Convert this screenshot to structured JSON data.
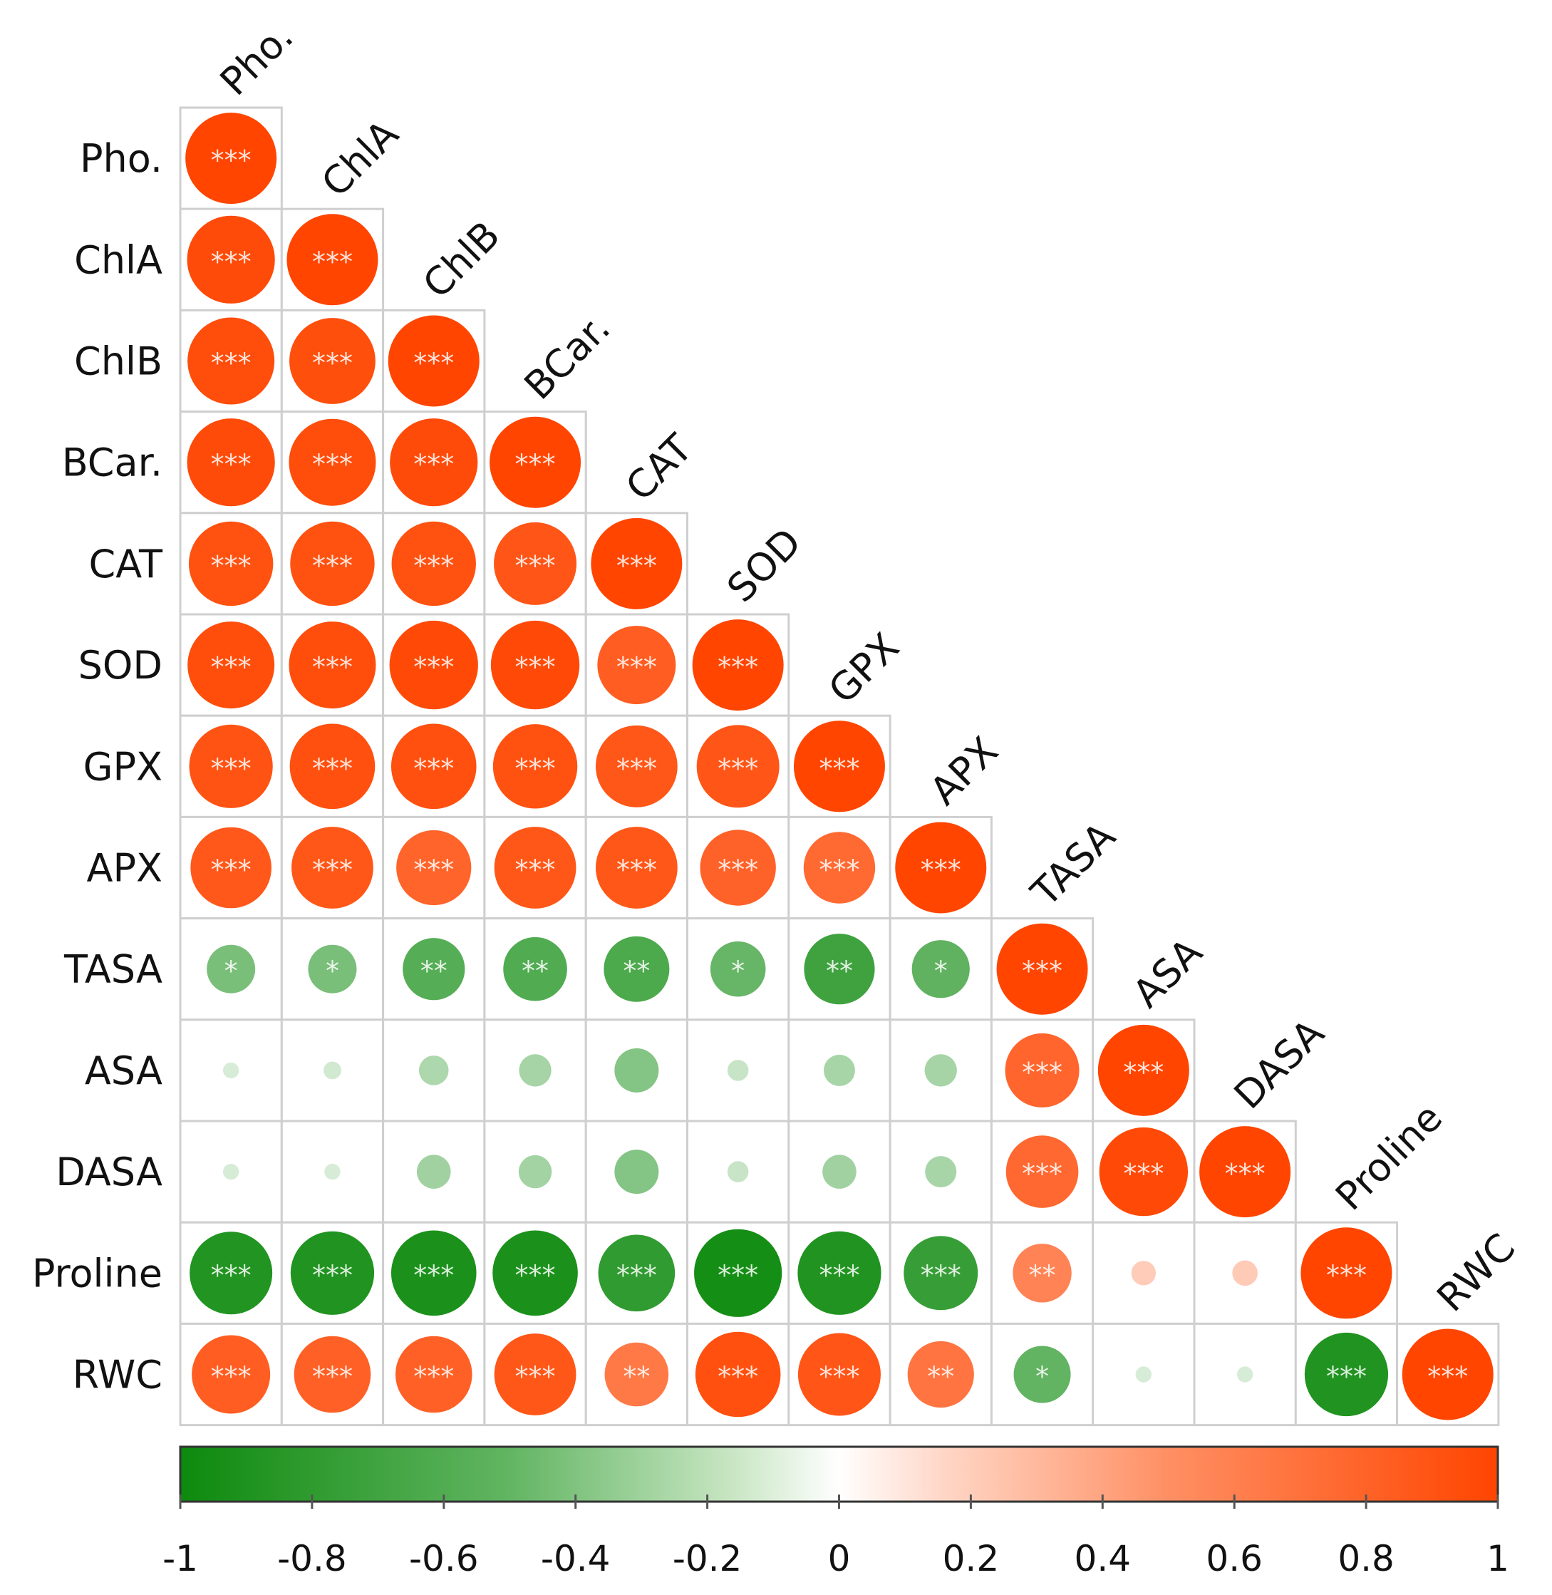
{
  "chart_data": {
    "type": "heatmap",
    "variables": [
      "Pho.",
      "ChlA",
      "ChlB",
      "BCar.",
      "CAT",
      "SOD",
      "GPX",
      "APX",
      "TASA",
      "ASA",
      "DASA",
      "Proline",
      "RWC"
    ],
    "matrix": [
      [
        1.0
      ],
      [
        0.96,
        1.0
      ],
      [
        0.95,
        0.94,
        1.0
      ],
      [
        0.96,
        0.95,
        0.96,
        1.0
      ],
      [
        0.92,
        0.92,
        0.92,
        0.9,
        1.0
      ],
      [
        0.95,
        0.95,
        0.97,
        0.97,
        0.85,
        1.0
      ],
      [
        0.91,
        0.93,
        0.93,
        0.92,
        0.89,
        0.9,
        1.0
      ],
      [
        0.88,
        0.89,
        0.81,
        0.89,
        0.89,
        0.82,
        0.77,
        1.0
      ],
      [
        -0.5,
        -0.5,
        -0.66,
        -0.68,
        -0.7,
        -0.58,
        -0.76,
        -0.61,
        1.0
      ],
      [
        -0.12,
        -0.14,
        -0.28,
        -0.31,
        -0.45,
        -0.18,
        -0.3,
        -0.31,
        0.8,
        1.0
      ],
      [
        -0.12,
        -0.12,
        -0.33,
        -0.32,
        -0.45,
        -0.18,
        -0.33,
        -0.3,
        0.78,
        0.97,
        1.0
      ],
      [
        -0.9,
        -0.91,
        -0.93,
        -0.93,
        -0.83,
        -0.96,
        -0.91,
        -0.8,
        0.62,
        0.22,
        0.23,
        1.0
      ],
      [
        0.85,
        0.83,
        0.83,
        0.89,
        0.68,
        0.93,
        0.9,
        0.71,
        -0.6,
        -0.12,
        -0.12,
        -0.91,
        1.0
      ]
    ],
    "significance": [
      [
        "***"
      ],
      [
        "***",
        "***"
      ],
      [
        "***",
        "***",
        "***"
      ],
      [
        "***",
        "***",
        "***",
        "***"
      ],
      [
        "***",
        "***",
        "***",
        "***",
        "***"
      ],
      [
        "***",
        "***",
        "***",
        "***",
        "***",
        "***"
      ],
      [
        "***",
        "***",
        "***",
        "***",
        "***",
        "***",
        "***"
      ],
      [
        "***",
        "***",
        "***",
        "***",
        "***",
        "***",
        "***",
        "***"
      ],
      [
        "*",
        "*",
        "**",
        "**",
        "**",
        "*",
        "**",
        "*",
        "***"
      ],
      [
        "",
        "",
        "",
        "",
        "",
        "",
        "",
        "",
        "***",
        "***"
      ],
      [
        "",
        "",
        "",
        "",
        "",
        "",
        "",
        "",
        "***",
        "***",
        "***"
      ],
      [
        "***",
        "***",
        "***",
        "***",
        "***",
        "***",
        "***",
        "***",
        "**",
        "",
        "",
        "***"
      ],
      [
        "***",
        "***",
        "***",
        "***",
        "**",
        "***",
        "***",
        "**",
        "*",
        "",
        "",
        "***",
        "***"
      ]
    ],
    "colorbar": {
      "range": [
        -1,
        1
      ],
      "ticks": [
        "-1",
        "-0.8",
        "-0.6",
        "-0.4",
        "-0.2",
        "0",
        "0.2",
        "0.4",
        "0.6",
        "0.8",
        "1"
      ],
      "colors": {
        "negative": "#0d8a0d",
        "zero": "#ffffff",
        "positive": "#ff4500"
      }
    },
    "title": "",
    "xlabel": "",
    "ylabel": ""
  }
}
